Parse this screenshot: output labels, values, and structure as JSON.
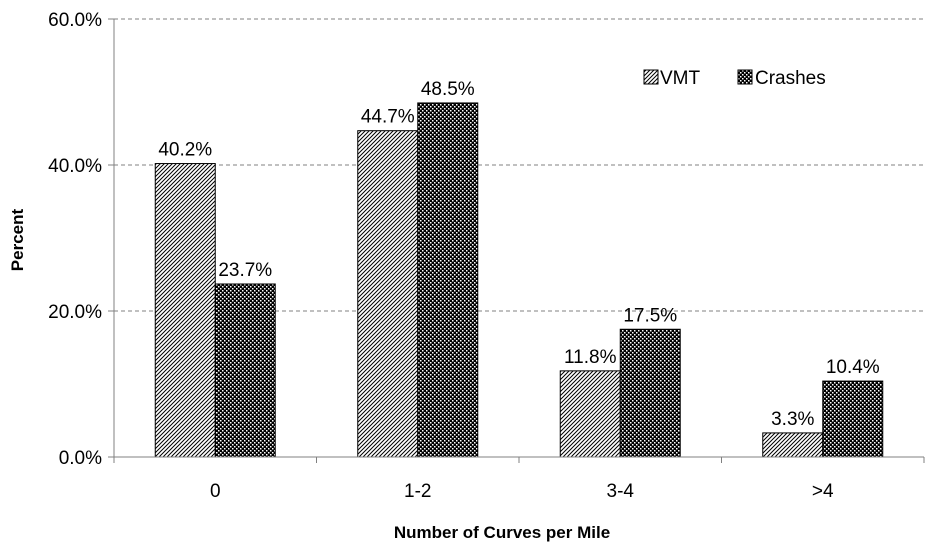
{
  "chart_data": {
    "type": "bar",
    "title": "",
    "xlabel": "Number of Curves per Mile",
    "ylabel": "Percent",
    "categories": [
      "0",
      "1-2",
      "3-4",
      ">4"
    ],
    "series": [
      {
        "name": "VMT",
        "values": [
          40.2,
          44.7,
          11.8,
          3.3
        ],
        "labels": [
          "40.2%",
          "44.7%",
          "11.8%",
          "3.3%"
        ],
        "pattern": "diagonal-hatch"
      },
      {
        "name": "Crashes",
        "values": [
          23.7,
          48.5,
          17.5,
          10.4
        ],
        "labels": [
          "23.7%",
          "48.5%",
          "17.5%",
          "10.4%"
        ],
        "pattern": "checkered"
      }
    ],
    "ylim": [
      0,
      60
    ],
    "yticks": [
      0,
      20,
      40,
      60
    ],
    "ytick_labels": [
      "0.0%",
      "20.0%",
      "40.0%",
      "60.0%"
    ],
    "grid": true,
    "grid_style": "dashed",
    "legend_position": "top-right"
  }
}
